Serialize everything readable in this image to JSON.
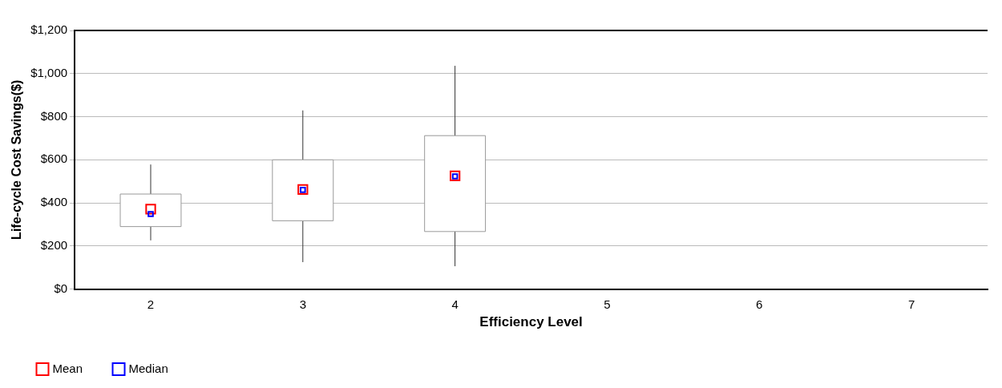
{
  "chart_data": {
    "type": "box",
    "xlabel": "Efficiency Level",
    "ylabel": "Life-cycle Cost Savings($)",
    "categories": [
      "2",
      "3",
      "4",
      "5",
      "6",
      "7"
    ],
    "boxes": [
      {
        "low": 226,
        "q1": 290,
        "q3": 441,
        "high": 578
      },
      {
        "low": 125,
        "q1": 317,
        "q3": 600,
        "high": 829
      },
      {
        "low": 106,
        "q1": 267,
        "q3": 712,
        "high": 1036
      },
      null,
      null,
      null
    ],
    "series": [
      {
        "name": "Mean",
        "type": "scatter",
        "marker": "square",
        "color": "#ff0000",
        "values": [
          371,
          462,
          525,
          null,
          null,
          null
        ]
      },
      {
        "name": "Median",
        "type": "scatter",
        "marker": "square",
        "color": "#0000ff",
        "values": [
          348,
          460,
          523,
          null,
          null,
          null
        ]
      }
    ],
    "ylim": [
      0,
      1200
    ],
    "yticks": [
      {
        "value": 0,
        "label": "$0"
      },
      {
        "value": 200,
        "label": "$200"
      },
      {
        "value": 400,
        "label": "$400"
      },
      {
        "value": 600,
        "label": "$600"
      },
      {
        "value": 800,
        "label": "$800"
      },
      {
        "value": 1000,
        "label": "$1,000"
      },
      {
        "value": 1200,
        "label": "$1,200"
      }
    ],
    "grid": "y",
    "legend": "bottom left"
  }
}
